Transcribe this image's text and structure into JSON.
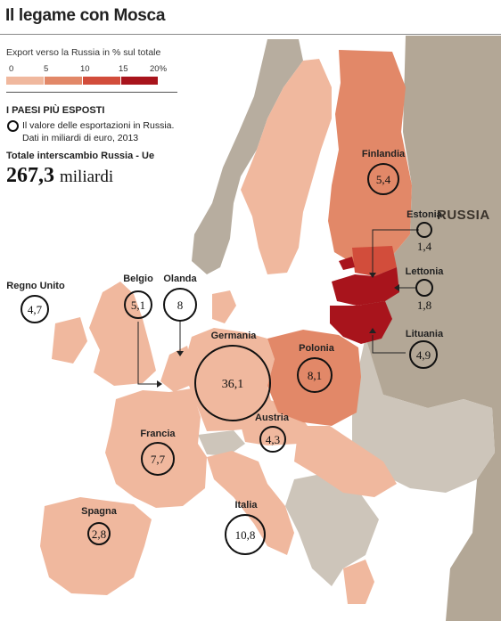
{
  "title": "Il legame con Mosca",
  "legend": {
    "title": "Export verso la Russia in % sul totale",
    "ticks": [
      "0",
      "5",
      "10",
      "15",
      "20%"
    ],
    "colors": [
      "#f0b89e",
      "#e28868",
      "#d24d3b",
      "#a8141c"
    ]
  },
  "exposed": {
    "title": "I PAESI PIÙ ESPOSTI",
    "key_text": "Il valore delle esportazioni in Russia. Dati in miliardi di euro, 2013"
  },
  "total": {
    "label": "Totale interscambio Russia - Ue",
    "value": "267,3",
    "unit": "miliardi"
  },
  "colors": {
    "sea": "#ffffff",
    "non_eu": "#b7ad9f",
    "russia": "#b3a796",
    "non_eu_light": "#cdc5ba",
    "border": "#ffffff"
  },
  "russia_label": "RUSSIA",
  "countries": [
    {
      "name": "Finlandia",
      "value": "5,4",
      "share_band": "5-10"
    },
    {
      "name": "Estonia",
      "value": "1,4",
      "share_band": "10-15"
    },
    {
      "name": "Lettonia",
      "value": "1,8",
      "share_band": "15-20"
    },
    {
      "name": "Lituania",
      "value": "4,9",
      "share_band": "15-20"
    },
    {
      "name": "Polonia",
      "value": "8,1",
      "share_band": "5-10"
    },
    {
      "name": "Germania",
      "value": "36,1",
      "share_band": "0-5"
    },
    {
      "name": "Olanda",
      "value": "8",
      "share_band": "0-5"
    },
    {
      "name": "Belgio",
      "value": "5,1",
      "share_band": "0-5"
    },
    {
      "name": "Regno Unito",
      "value": "4,7",
      "share_band": "0-5"
    },
    {
      "name": "Francia",
      "value": "7,7",
      "share_band": "0-5"
    },
    {
      "name": "Austria",
      "value": "4,3",
      "share_band": "0-5"
    },
    {
      "name": "Italia",
      "value": "10,8",
      "share_band": "0-5"
    },
    {
      "name": "Spagna",
      "value": "2,8",
      "share_band": "0-5"
    }
  ]
}
